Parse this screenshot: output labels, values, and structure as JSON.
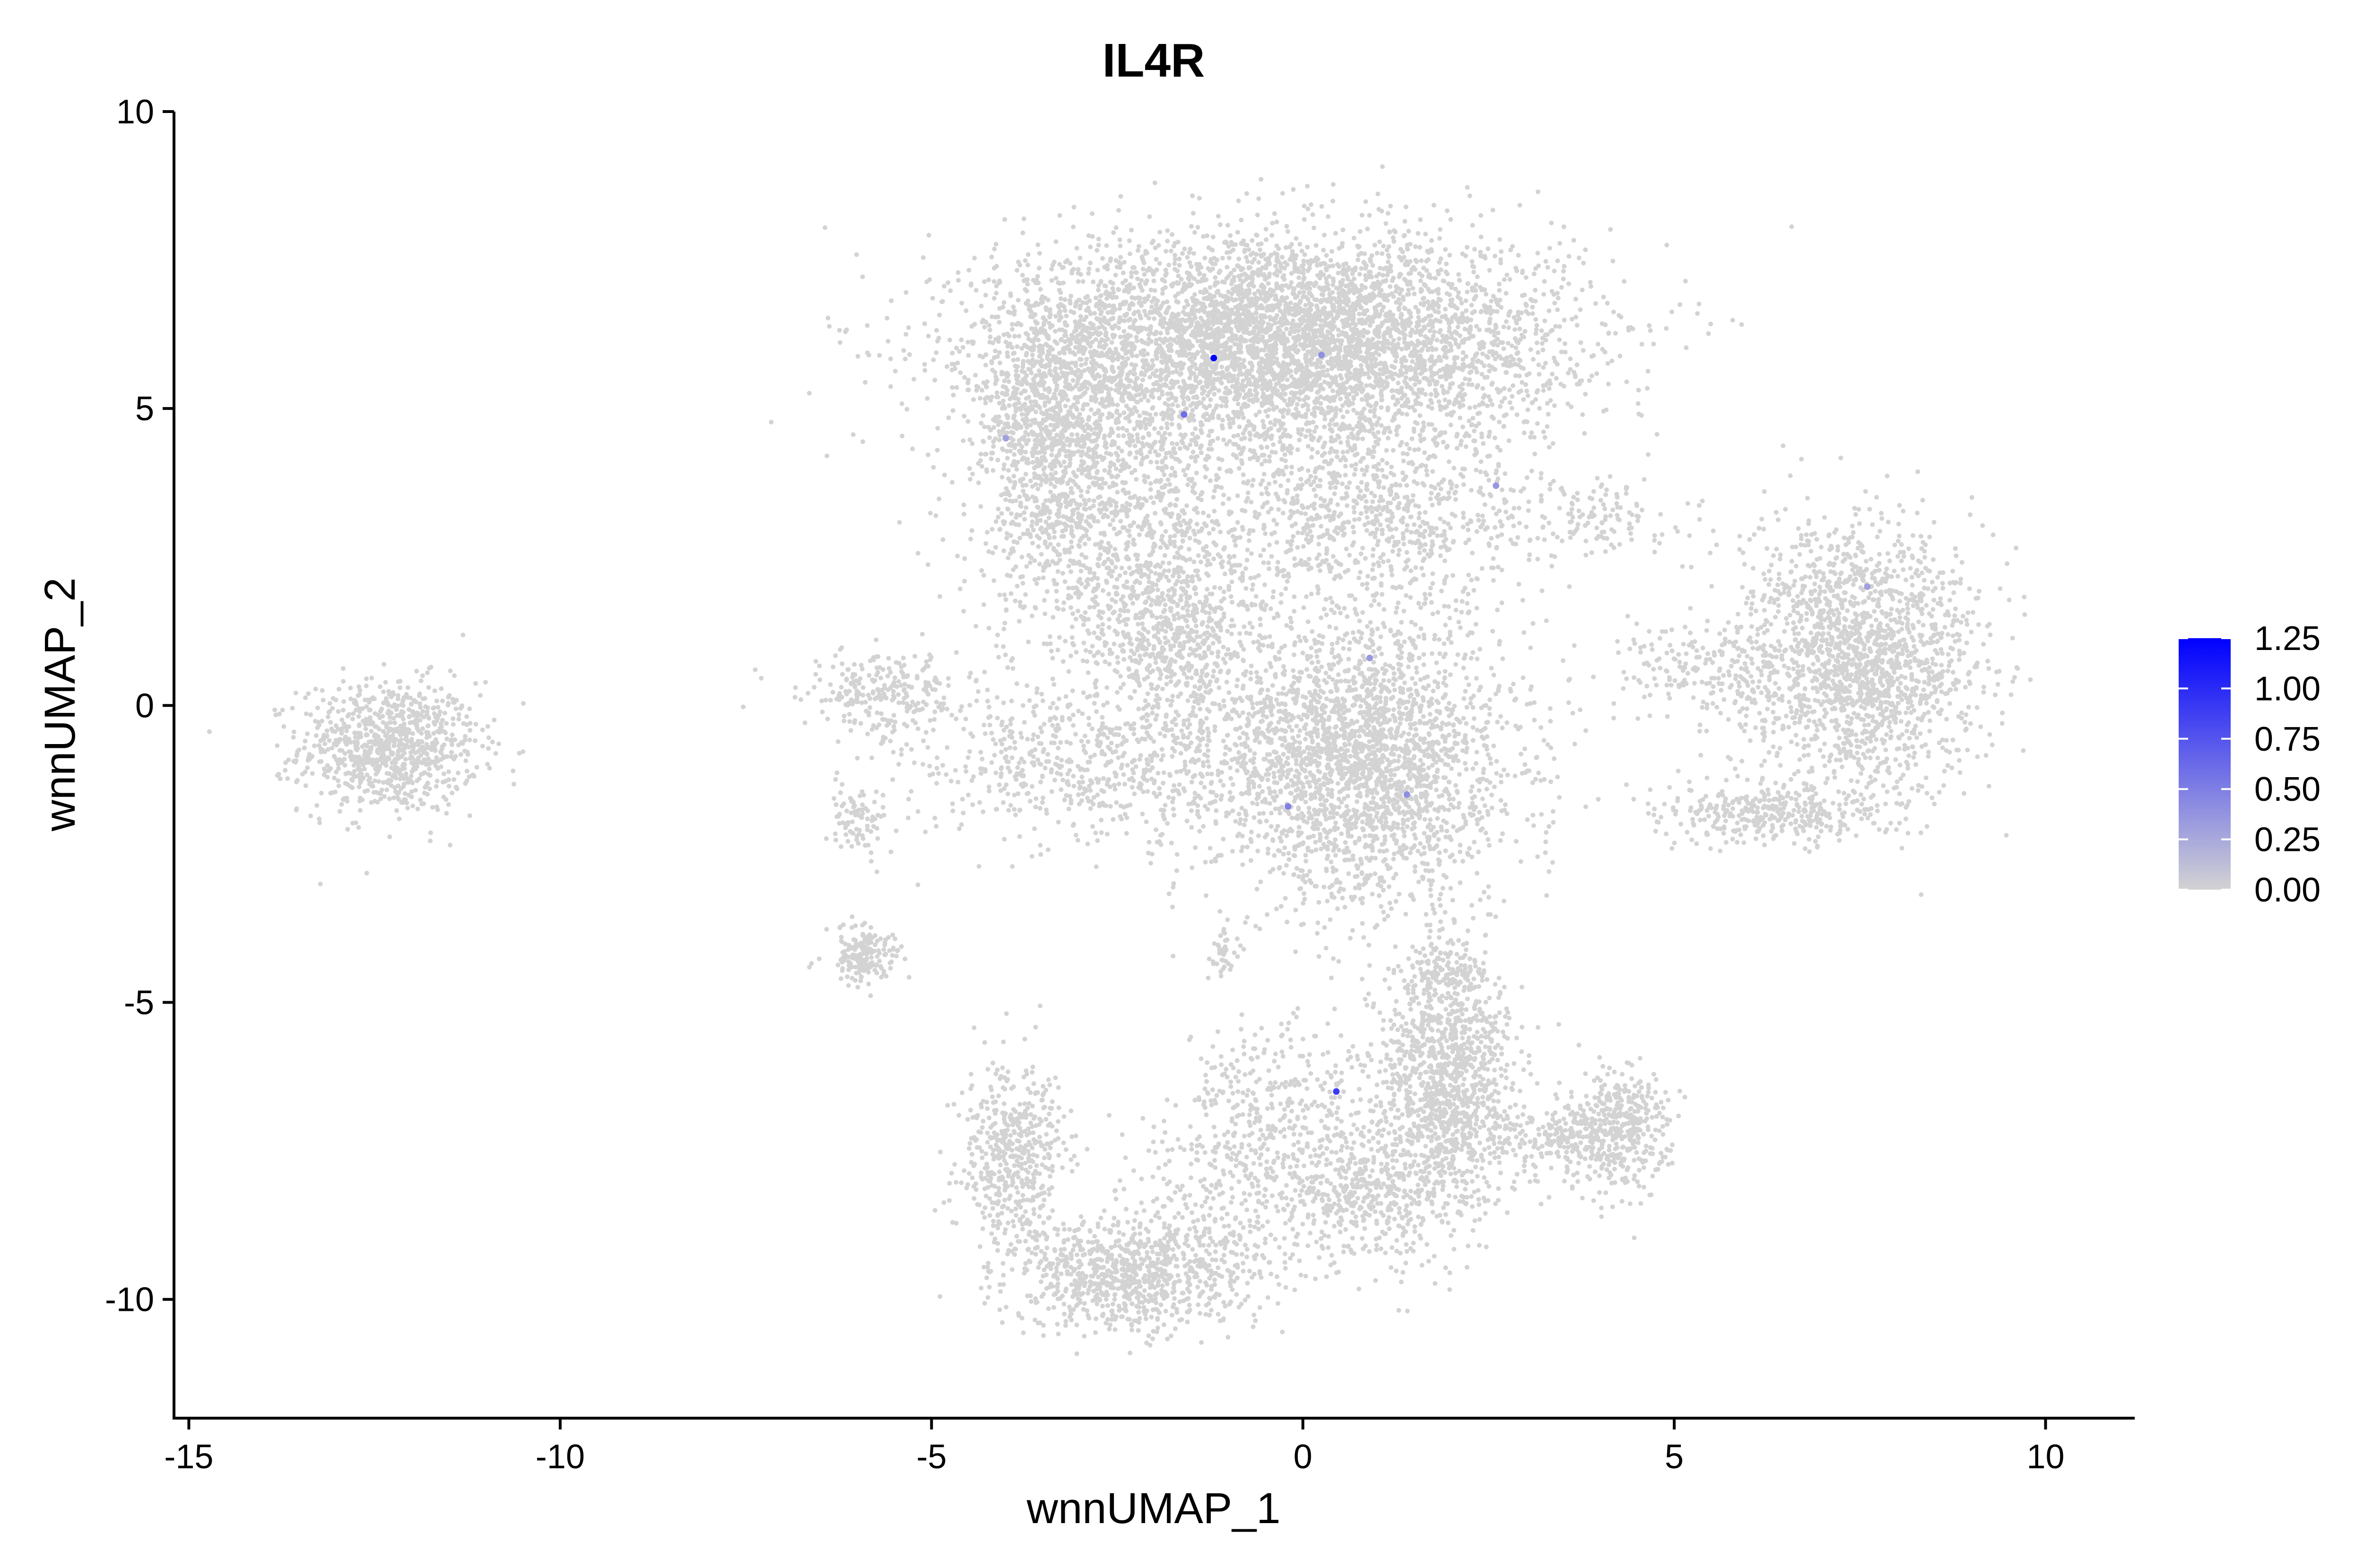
{
  "chart_data": {
    "type": "scatter",
    "title": "IL4R",
    "xlabel": "wnnUMAP_1",
    "ylabel": "wnnUMAP_2",
    "xlim": [
      -15.2,
      11.2
    ],
    "ylim": [
      -12,
      10
    ],
    "xticks": [
      -15,
      -10,
      -5,
      0,
      5,
      10
    ],
    "xtick_labels": [
      "-15",
      "-10",
      "-5",
      "0",
      "5",
      "10"
    ],
    "yticks": [
      -10,
      -5,
      0,
      5,
      10
    ],
    "ytick_labels": [
      "-10",
      "-5",
      "0",
      "5",
      "10"
    ],
    "grid": false,
    "legend": {
      "position": "right",
      "type": "colorbar",
      "range": [
        0,
        1.25
      ],
      "ticks": [
        0,
        0.25,
        0.5,
        0.75,
        1.0,
        1.25
      ],
      "tick_labels": [
        "0.00",
        "0.25",
        "0.50",
        "0.75",
        "1.00",
        "1.25"
      ],
      "low_color": "#d3d3d3",
      "high_color": "#0000ff"
    },
    "colors": {
      "point": "#d3d3d3",
      "axis": "#000000",
      "background": "#ffffff"
    },
    "clusters": [
      {
        "cx": -12.3,
        "cy": -0.7,
        "sx": 0.6,
        "sy": 0.55,
        "n": 900
      },
      {
        "cx": -0.3,
        "cy": 6.1,
        "sx": 1.9,
        "sy": 0.9,
        "n": 5200
      },
      {
        "cx": -2.5,
        "cy": 3.0,
        "sx": 0.9,
        "sy": 1.3,
        "n": 1200
      },
      {
        "cx": -3.4,
        "cy": 4.8,
        "sx": 0.5,
        "sy": 1.0,
        "n": 800
      },
      {
        "cx": 0.9,
        "cy": 3.2,
        "sx": 1.2,
        "sy": 0.8,
        "n": 900
      },
      {
        "cx": 0.8,
        "cy": -0.9,
        "sx": 1.0,
        "sy": 1.2,
        "n": 2600
      },
      {
        "cx": -2.8,
        "cy": -1.0,
        "sx": 1.3,
        "sy": 0.7,
        "n": 700
      },
      {
        "cx": -1.7,
        "cy": 1.0,
        "sx": 0.6,
        "sy": 0.7,
        "n": 500
      },
      {
        "cx": -5.6,
        "cy": 0.2,
        "sx": 0.5,
        "sy": 0.4,
        "n": 250
      },
      {
        "cx": -5.9,
        "cy": -4.2,
        "sx": 0.25,
        "sy": 0.25,
        "n": 180
      },
      {
        "cx": -6.0,
        "cy": -1.9,
        "sx": 0.2,
        "sy": 0.3,
        "n": 80
      },
      {
        "cx": 7.5,
        "cy": 0.8,
        "sx": 0.8,
        "sy": 1.1,
        "n": 1800
      },
      {
        "cx": 6.4,
        "cy": -1.8,
        "sx": 0.8,
        "sy": 0.25,
        "n": 350
      },
      {
        "cx": 5.5,
        "cy": 0.6,
        "sx": 0.7,
        "sy": 0.4,
        "n": 200
      },
      {
        "cx": 4.0,
        "cy": 3.1,
        "sx": 0.6,
        "sy": 0.3,
        "n": 120
      },
      {
        "cx": 1.9,
        "cy": -6.3,
        "sx": 0.45,
        "sy": 1.1,
        "n": 1200
      },
      {
        "cx": 0.8,
        "cy": -8.2,
        "sx": 0.6,
        "sy": 0.7,
        "n": 500
      },
      {
        "cx": -0.2,
        "cy": -6.8,
        "sx": 0.7,
        "sy": 0.8,
        "n": 300
      },
      {
        "cx": 4.2,
        "cy": -7.2,
        "sx": 0.35,
        "sy": 0.5,
        "n": 450
      },
      {
        "cx": 3.2,
        "cy": -7.3,
        "sx": 0.4,
        "sy": 0.3,
        "n": 150
      },
      {
        "cx": -2.3,
        "cy": -9.6,
        "sx": 0.8,
        "sy": 0.5,
        "n": 900
      },
      {
        "cx": -3.9,
        "cy": -7.6,
        "sx": 0.35,
        "sy": 0.8,
        "n": 500
      },
      {
        "cx": -1.0,
        "cy": -8.0,
        "sx": 0.6,
        "sy": 0.8,
        "n": 250
      },
      {
        "cx": 1.9,
        "cy": -4.5,
        "sx": 0.3,
        "sy": 0.2,
        "n": 100
      },
      {
        "cx": -1.1,
        "cy": -4.2,
        "sx": 0.15,
        "sy": 0.2,
        "n": 40
      }
    ],
    "expressing_points": [
      {
        "x": -1.2,
        "y": 5.85,
        "value": 1.25
      },
      {
        "x": -1.6,
        "y": 4.9,
        "value": 0.6
      },
      {
        "x": 0.25,
        "y": 5.9,
        "value": 0.4
      },
      {
        "x": 0.9,
        "y": 0.8,
        "value": 0.35
      },
      {
        "x": 1.4,
        "y": -1.5,
        "value": 0.4
      },
      {
        "x": -0.2,
        "y": -1.7,
        "value": 0.5
      },
      {
        "x": 0.45,
        "y": -6.5,
        "value": 0.9
      },
      {
        "x": 2.6,
        "y": 3.7,
        "value": 0.35
      },
      {
        "x": 7.6,
        "y": 2.0,
        "value": 0.3
      },
      {
        "x": -4.0,
        "y": 4.5,
        "value": 0.3
      }
    ]
  }
}
